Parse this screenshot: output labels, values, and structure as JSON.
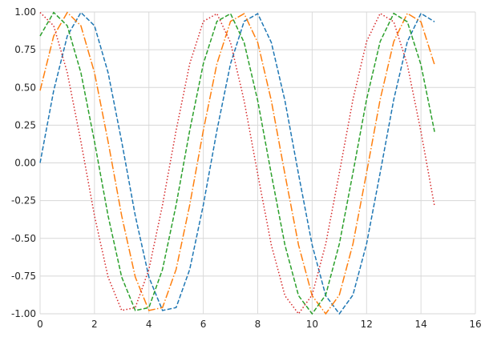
{
  "chart_data": {
    "type": "line",
    "title": "",
    "xlabel": "",
    "ylabel": "",
    "xlim": [
      0,
      16
    ],
    "ylim": [
      -1.0,
      1.0
    ],
    "grid": true,
    "x_ticks": [
      "0",
      "2",
      "4",
      "6",
      "8",
      "10",
      "12",
      "14",
      "16"
    ],
    "y_ticks": [
      "1.00",
      "0.75",
      "0.50",
      "0.25",
      "0.00",
      "-0.25",
      "-0.50",
      "-0.75",
      "-1.00"
    ],
    "x": [
      0,
      0.5,
      1,
      1.5,
      2,
      2.5,
      3,
      3.5,
      4,
      4.5,
      5,
      5.5,
      6,
      6.5,
      7,
      7.5,
      8,
      8.5,
      9,
      9.5,
      10,
      10.5,
      11,
      11.5,
      12,
      12.5,
      13,
      13.5,
      14,
      14.5
    ],
    "series": [
      {
        "color": "#1f77b4",
        "dash": "dashed",
        "values": [
          0.0,
          0.479,
          0.841,
          0.997,
          0.909,
          0.598,
          0.141,
          -0.351,
          -0.757,
          -0.978,
          -0.959,
          -0.706,
          -0.279,
          0.215,
          0.657,
          0.938,
          0.989,
          0.798,
          0.412,
          -0.075,
          -0.544,
          -0.88,
          -1.0,
          -0.875,
          -0.537,
          -0.066,
          0.42,
          0.804,
          0.991,
          0.935
        ]
      },
      {
        "color": "#ff7f0e",
        "dash": "dashdot",
        "values": [
          0.479,
          0.841,
          0.997,
          0.909,
          0.598,
          0.141,
          -0.351,
          -0.757,
          -0.978,
          -0.959,
          -0.706,
          -0.279,
          0.215,
          0.657,
          0.938,
          0.989,
          0.798,
          0.412,
          -0.075,
          -0.544,
          -0.88,
          -1.0,
          -0.875,
          -0.537,
          -0.066,
          0.42,
          0.804,
          0.991,
          0.935,
          0.65
        ]
      },
      {
        "color": "#2ca02c",
        "dash": "dashed",
        "values": [
          0.841,
          0.997,
          0.909,
          0.598,
          0.141,
          -0.351,
          -0.757,
          -0.978,
          -0.959,
          -0.706,
          -0.279,
          0.215,
          0.657,
          0.938,
          0.989,
          0.798,
          0.412,
          -0.075,
          -0.544,
          -0.88,
          -1.0,
          -0.875,
          -0.537,
          -0.066,
          0.42,
          0.804,
          0.991,
          0.935,
          0.65,
          0.206
        ]
      },
      {
        "color": "#d62728",
        "dash": "dotted",
        "values": [
          0.997,
          0.909,
          0.598,
          0.141,
          -0.351,
          -0.757,
          -0.978,
          -0.959,
          -0.706,
          -0.279,
          0.215,
          0.657,
          0.938,
          0.989,
          0.798,
          0.412,
          -0.075,
          -0.544,
          -0.88,
          -1.0,
          -0.875,
          -0.537,
          -0.066,
          0.42,
          0.804,
          0.991,
          0.935,
          0.65,
          0.206,
          -0.288
        ]
      }
    ]
  }
}
